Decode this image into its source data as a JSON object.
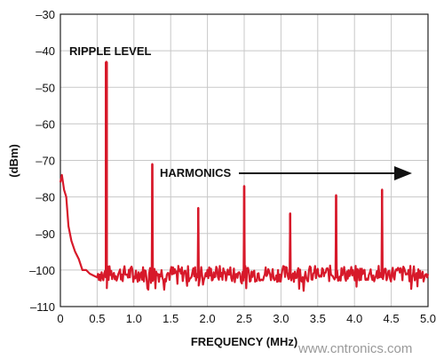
{
  "chart_data": {
    "type": "line",
    "xlabel": "FREQUENCY (MHz)",
    "ylabel": "(dBm)",
    "xlim": [
      0,
      5.0
    ],
    "ylim": [
      -110,
      -30
    ],
    "x_ticks": [
      "0",
      "0.5",
      "1.0",
      "1.5",
      "2.0",
      "2.5",
      "3.0",
      "3.5",
      "4.0",
      "4.5",
      "5.0"
    ],
    "y_ticks": [
      "–30",
      "–40",
      "–50",
      "–60",
      "–70",
      "–80",
      "–90",
      "–100",
      "–110"
    ],
    "grid": true,
    "series": [
      {
        "color": "#d7192a",
        "noise_floor": -101,
        "low_frequency_rolloff": [
          {
            "x": 0.0,
            "y": -76
          },
          {
            "x": 0.02,
            "y": -74
          },
          {
            "x": 0.05,
            "y": -78
          },
          {
            "x": 0.08,
            "y": -80
          },
          {
            "x": 0.11,
            "y": -88
          },
          {
            "x": 0.15,
            "y": -92
          },
          {
            "x": 0.2,
            "y": -95
          },
          {
            "x": 0.25,
            "y": -97
          },
          {
            "x": 0.3,
            "y": -100
          },
          {
            "x": 0.35,
            "y": -100
          },
          {
            "x": 0.4,
            "y": -101
          },
          {
            "x": 0.5,
            "y": -102
          }
        ],
        "peaks": [
          {
            "x": 0.625,
            "y": -43
          },
          {
            "x": 1.25,
            "y": -71
          },
          {
            "x": 1.875,
            "y": -83
          },
          {
            "x": 2.5,
            "y": -77
          },
          {
            "x": 3.125,
            "y": -84.5
          },
          {
            "x": 3.75,
            "y": -79.5
          },
          {
            "x": 4.375,
            "y": -78
          }
        ]
      }
    ],
    "annotations": {
      "ripple_level": "RIPPLE LEVEL",
      "harmonics": "HARMONICS"
    }
  },
  "watermark": "www.cntronics.com"
}
